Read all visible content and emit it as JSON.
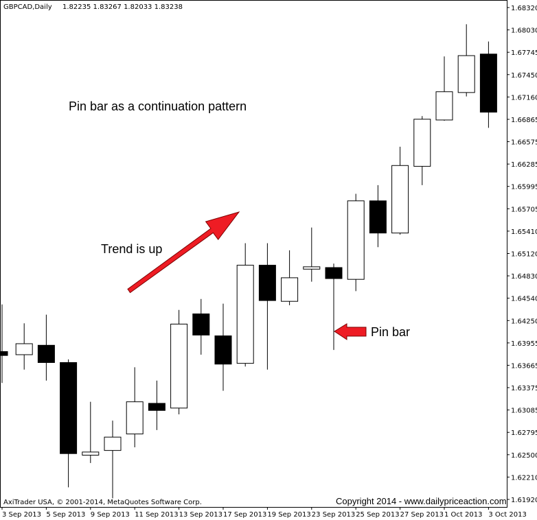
{
  "header": {
    "symbol": "GBPCAD,Daily",
    "ohlc": "1.82235 1.83267 1.82033 1.83238"
  },
  "annotations": {
    "title": "Pin bar as a continuation pattern",
    "trend": "Trend is up",
    "pin_bar": "Pin bar"
  },
  "footer": {
    "left": "AxiTrader USA, © 2001-2014, MetaQuotes Software Corp.",
    "right": "Copyright 2014 - www.dailypriceaction.com"
  },
  "colors": {
    "arrow": "#ee1c24",
    "bear_body": "#000000",
    "bull_body": "#ffffff",
    "axis": "#000000"
  },
  "chart_data": {
    "type": "candlestick",
    "ylim": [
      1.619,
      1.6835
    ],
    "y_ticks": [
      "1.68320",
      "1.68030",
      "1.67745",
      "1.67450",
      "1.67160",
      "1.66865",
      "1.66575",
      "1.66285",
      "1.65995",
      "1.65705",
      "1.65410",
      "1.65120",
      "1.64830",
      "1.64540",
      "1.64250",
      "1.63955",
      "1.63665",
      "1.63375",
      "1.63085",
      "1.62795",
      "1.62500",
      "1.62210",
      "1.61920"
    ],
    "x_ticks": [
      "3 Sep 2013",
      "5 Sep 2013",
      "9 Sep 2013",
      "11 Sep 2013",
      "13 Sep 2013",
      "17 Sep 2013",
      "19 Sep 2013",
      "23 Sep 2013",
      "25 Sep 2013",
      "27 Sep 2013",
      "1 Oct 2013",
      "3 Oct 2013"
    ],
    "candles": [
      {
        "date": "2 Sep 2013",
        "open": 1.6388,
        "high": 1.6448,
        "low": 1.6348,
        "close": 1.6383
      },
      {
        "date": "3 Sep 2013",
        "open": 1.6384,
        "high": 1.6424,
        "low": 1.6365,
        "close": 1.6398
      },
      {
        "date": "4 Sep 2013",
        "open": 1.6396,
        "high": 1.6435,
        "low": 1.6351,
        "close": 1.6374
      },
      {
        "date": "5 Sep 2013",
        "open": 1.6374,
        "high": 1.6378,
        "low": 1.6215,
        "close": 1.6258
      },
      {
        "date": "6 Sep 2013",
        "open": 1.6256,
        "high": 1.6324,
        "low": 1.6246,
        "close": 1.626
      },
      {
        "date": "9 Sep 2013",
        "open": 1.6262,
        "high": 1.63,
        "low": 1.6201,
        "close": 1.6279
      },
      {
        "date": "10 Sep 2013",
        "open": 1.6283,
        "high": 1.6368,
        "low": 1.6266,
        "close": 1.6324
      },
      {
        "date": "11 Sep 2013",
        "open": 1.6322,
        "high": 1.6351,
        "low": 1.6288,
        "close": 1.6313
      },
      {
        "date": "12 Sep 2013",
        "open": 1.6316,
        "high": 1.6441,
        "low": 1.6308,
        "close": 1.6423
      },
      {
        "date": "13 Sep 2013",
        "open": 1.6436,
        "high": 1.6455,
        "low": 1.6384,
        "close": 1.6409
      },
      {
        "date": "16 Sep 2013",
        "open": 1.6408,
        "high": 1.6449,
        "low": 1.6338,
        "close": 1.6372
      },
      {
        "date": "17 Sep 2013",
        "open": 1.6373,
        "high": 1.6526,
        "low": 1.6369,
        "close": 1.6498
      },
      {
        "date": "18 Sep 2013",
        "open": 1.6498,
        "high": 1.6526,
        "low": 1.6365,
        "close": 1.6453
      },
      {
        "date": "19 Sep 2013",
        "open": 1.6452,
        "high": 1.6517,
        "low": 1.6447,
        "close": 1.6482
      },
      {
        "date": "20 Sep 2013",
        "open": 1.6493,
        "high": 1.6546,
        "low": 1.6477,
        "close": 1.6496
      },
      {
        "date": "23 Sep 2013",
        "open": 1.6495,
        "high": 1.65,
        "low": 1.639,
        "close": 1.6481
      },
      {
        "date": "24 Sep 2013",
        "open": 1.648,
        "high": 1.6589,
        "low": 1.6465,
        "close": 1.658
      },
      {
        "date": "25 Sep 2013",
        "open": 1.658,
        "high": 1.66,
        "low": 1.6521,
        "close": 1.6539
      },
      {
        "date": "26 Sep 2013",
        "open": 1.6539,
        "high": 1.6649,
        "low": 1.6537,
        "close": 1.6625
      },
      {
        "date": "27 Sep 2013",
        "open": 1.6624,
        "high": 1.6688,
        "low": 1.66,
        "close": 1.6684
      },
      {
        "date": "30 Sep 2013",
        "open": 1.6683,
        "high": 1.6764,
        "low": 1.6682,
        "close": 1.6719
      },
      {
        "date": "1 Oct 2013",
        "open": 1.6718,
        "high": 1.6805,
        "low": 1.6713,
        "close": 1.6765
      },
      {
        "date": "2 Oct 2013",
        "open": 1.6767,
        "high": 1.6783,
        "low": 1.6673,
        "close": 1.6693
      }
    ]
  }
}
